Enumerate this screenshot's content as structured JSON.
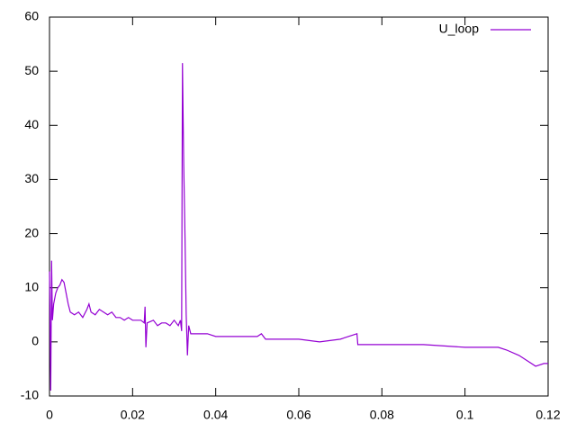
{
  "chart_data": {
    "type": "line",
    "x": [
      0,
      0.0003,
      0.0005,
      0.0007,
      0.001,
      0.0015,
      0.002,
      0.0025,
      0.003,
      0.0035,
      0.004,
      0.0045,
      0.005,
      0.006,
      0.007,
      0.008,
      0.009,
      0.0095,
      0.01,
      0.011,
      0.012,
      0.013,
      0.014,
      0.015,
      0.016,
      0.017,
      0.018,
      0.019,
      0.02,
      0.021,
      0.022,
      0.0228,
      0.023,
      0.0232,
      0.0235,
      0.025,
      0.026,
      0.027,
      0.028,
      0.029,
      0.03,
      0.031,
      0.0315,
      0.0318,
      0.032,
      0.0323,
      0.0326,
      0.0329,
      0.0332,
      0.0335,
      0.034,
      0.036,
      0.038,
      0.04,
      0.045,
      0.05,
      0.051,
      0.052,
      0.06,
      0.065,
      0.07,
      0.074,
      0.0742,
      0.08,
      0.09,
      0.1,
      0.105,
      0.108,
      0.11,
      0.113,
      0.115,
      0.117,
      0.119,
      0.12
    ],
    "series": [
      {
        "name": "U_loop",
        "color": "#9400d3",
        "values": [
          13,
          -9,
          15,
          4,
          7,
          9,
          10,
          10.5,
          11.5,
          11,
          9,
          7,
          5.5,
          5,
          5.5,
          4.5,
          6,
          7,
          5.5,
          5,
          6,
          5.5,
          5,
          5.5,
          4.5,
          4.5,
          4,
          4.5,
          4,
          4,
          4,
          3.5,
          6.5,
          -1,
          3.5,
          4,
          3,
          3.5,
          3.5,
          3,
          4,
          3,
          4,
          2,
          51.5,
          33,
          20,
          5,
          -2.5,
          3,
          1.5,
          1.5,
          1.5,
          1,
          1,
          1,
          1.5,
          0.5,
          0.5,
          0,
          0.5,
          1.5,
          -0.5,
          -0.5,
          -0.5,
          -1,
          -1,
          -1,
          -1.5,
          -2.5,
          -3.5,
          -4.5,
          -4,
          -4
        ]
      }
    ],
    "xlim": [
      0,
      0.12
    ],
    "xticks": [
      0,
      0.02,
      0.04,
      0.06,
      0.08,
      0.1,
      0.12
    ],
    "ylim": [
      -10,
      60
    ],
    "yticks": [
      -10,
      0,
      10,
      20,
      30,
      40,
      50,
      60
    ],
    "grid": false,
    "legend": "top-right"
  }
}
